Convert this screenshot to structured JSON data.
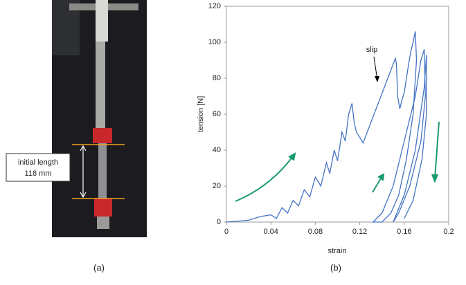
{
  "chart_data": {
    "type": "line",
    "xlabel": "strain",
    "ylabel": "tension [N]",
    "annotation": "slip",
    "color": "#4472c4",
    "x": [
      0.0,
      0.02,
      0.03,
      0.04,
      0.045,
      0.05,
      0.055,
      0.06,
      0.065,
      0.07,
      0.075,
      0.08,
      0.085,
      0.09,
      0.093,
      0.097,
      0.1,
      0.104,
      0.107,
      0.11,
      0.113,
      0.115,
      0.117,
      0.12,
      0.123,
      0.152,
      0.153,
      0.154,
      0.156,
      0.158,
      0.16,
      0.162,
      0.164,
      0.166,
      0.168,
      0.17,
      0.171,
      0.168,
      0.162,
      0.155,
      0.148,
      0.14,
      0.132,
      0.14,
      0.15,
      0.16,
      0.17,
      0.175,
      0.178,
      0.179,
      0.175,
      0.165,
      0.155,
      0.15,
      0.16,
      0.17,
      0.178,
      0.18,
      0.18,
      0.176,
      0.168,
      0.16
    ],
    "values": [
      0,
      1,
      3,
      4,
      2,
      8,
      5,
      12,
      9,
      18,
      14,
      25,
      20,
      33,
      27,
      40,
      34,
      50,
      45,
      60,
      66,
      55,
      50,
      47,
      44,
      91,
      88,
      70,
      63,
      68,
      72,
      80,
      88,
      95,
      100,
      106,
      90,
      60,
      35,
      15,
      5,
      0,
      0,
      5,
      20,
      45,
      70,
      90,
      96,
      70,
      45,
      20,
      5,
      0,
      15,
      40,
      75,
      93,
      60,
      35,
      12,
      2
    ],
    "xlim": [
      0,
      0.2
    ],
    "xticks": [
      0,
      0.04,
      0.08,
      0.12,
      0.16,
      0.2
    ],
    "ylim": [
      0,
      120
    ],
    "yticks": [
      0,
      20,
      40,
      60,
      80,
      100,
      120
    ]
  },
  "photo_label": {
    "line1": "initial length",
    "line2": "118 mm"
  },
  "panel_labels": [
    "(a)",
    "(b)"
  ]
}
